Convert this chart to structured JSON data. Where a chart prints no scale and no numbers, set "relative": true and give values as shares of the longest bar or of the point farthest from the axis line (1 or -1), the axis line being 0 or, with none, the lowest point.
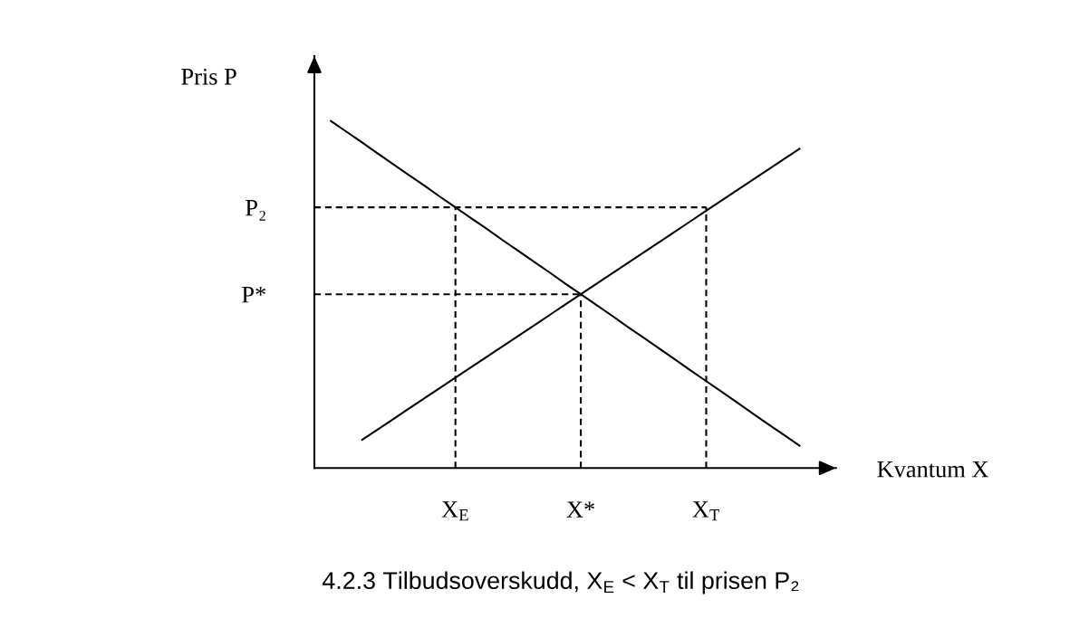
{
  "chart_data": {
    "type": "line",
    "relative": true,
    "xlabel": "Kvantum X",
    "ylabel": "Pris P",
    "line_style": "solid",
    "categories": [
      null,
      null,
      null,
      null,
      null,
      null,
      null,
      null,
      null,
      "X$_{E}$",
      null,
      null,
      null,
      null,
      null,
      null,
      null,
      "X*",
      null,
      null,
      null,
      null,
      null,
      null,
      null,
      "X$_{T}$",
      null,
      null,
      null,
      null,
      null,
      null
    ],
    "series": [
      {
        "color": "#000000",
        "values": [
          null,
          1,
          0.969,
          0.938,
          0.906,
          0.875,
          0.844,
          0.813,
          0.781,
          0.75,
          0.719,
          0.688,
          0.656,
          0.625,
          0.594,
          0.563,
          0.531,
          0.5,
          0.469,
          0.438,
          0.406,
          0.375,
          0.344,
          0.313,
          0.281,
          0.25,
          0.219,
          0.188,
          0.156,
          0.125,
          0.094,
          0.063
        ]
      },
      {
        "color": "#000000",
        "values": [
          null,
          null,
          null,
          0.08,
          0.11,
          0.14,
          0.17,
          0.2,
          0.23,
          0.26,
          0.29,
          0.32,
          0.35,
          0.38,
          0.41,
          0.44,
          0.47,
          0.5,
          0.53,
          0.56,
          0.59,
          0.62,
          0.65,
          0.68,
          0.71,
          0.74,
          0.77,
          0.8,
          0.83,
          0.86,
          0.89,
          0.92
        ]
      },
      {
        "name": "P₂",
        "color": "#000000",
        "line_style": "dashed",
        "values": [
          0.75,
          0.75,
          0.75,
          0.75,
          0.75,
          0.75,
          0.75,
          0.75,
          0.75,
          0.75,
          0.75,
          0.75,
          0.75,
          0.75,
          0.75,
          0.75,
          0.75,
          0.75,
          0.75,
          0.75,
          0.75,
          0.75,
          0.75,
          0.75,
          0.75,
          0.75,
          null,
          null,
          null,
          null,
          null,
          null
        ]
      },
      {
        "name": "P*",
        "color": "#000000",
        "line_style": "dashed",
        "values": [
          0.5,
          0.5,
          0.5,
          0.5,
          0.5,
          0.5,
          0.5,
          0.5,
          0.5,
          0.5,
          0.5,
          0.5,
          0.5,
          0.5,
          0.5,
          0.5,
          0.5,
          0.5,
          null,
          null,
          null,
          null,
          null,
          null,
          null,
          null,
          null,
          null,
          null,
          null,
          null,
          null
        ]
      },
      {
        "color": "#000000",
        "line_style": "dashed",
        "x": [
          "X$_{E}$",
          "X$_{E}$"
        ],
        "values": [
          0,
          0.75
        ]
      },
      {
        "color": "#000000",
        "line_style": "dashed",
        "x": [
          "X*",
          "X*"
        ],
        "values": [
          0,
          0.5
        ]
      },
      {
        "color": "#000000",
        "line_style": "dashed",
        "x": [
          "X$_{T}$",
          "X$_{T}$"
        ],
        "values": [
          0,
          0.75
        ]
      }
    ],
    "annotations": [
      "4.2.3 Tilbudsoverskudd, X$_{E}$ < X$_{T}$ til prisen P₂"
    ]
  }
}
